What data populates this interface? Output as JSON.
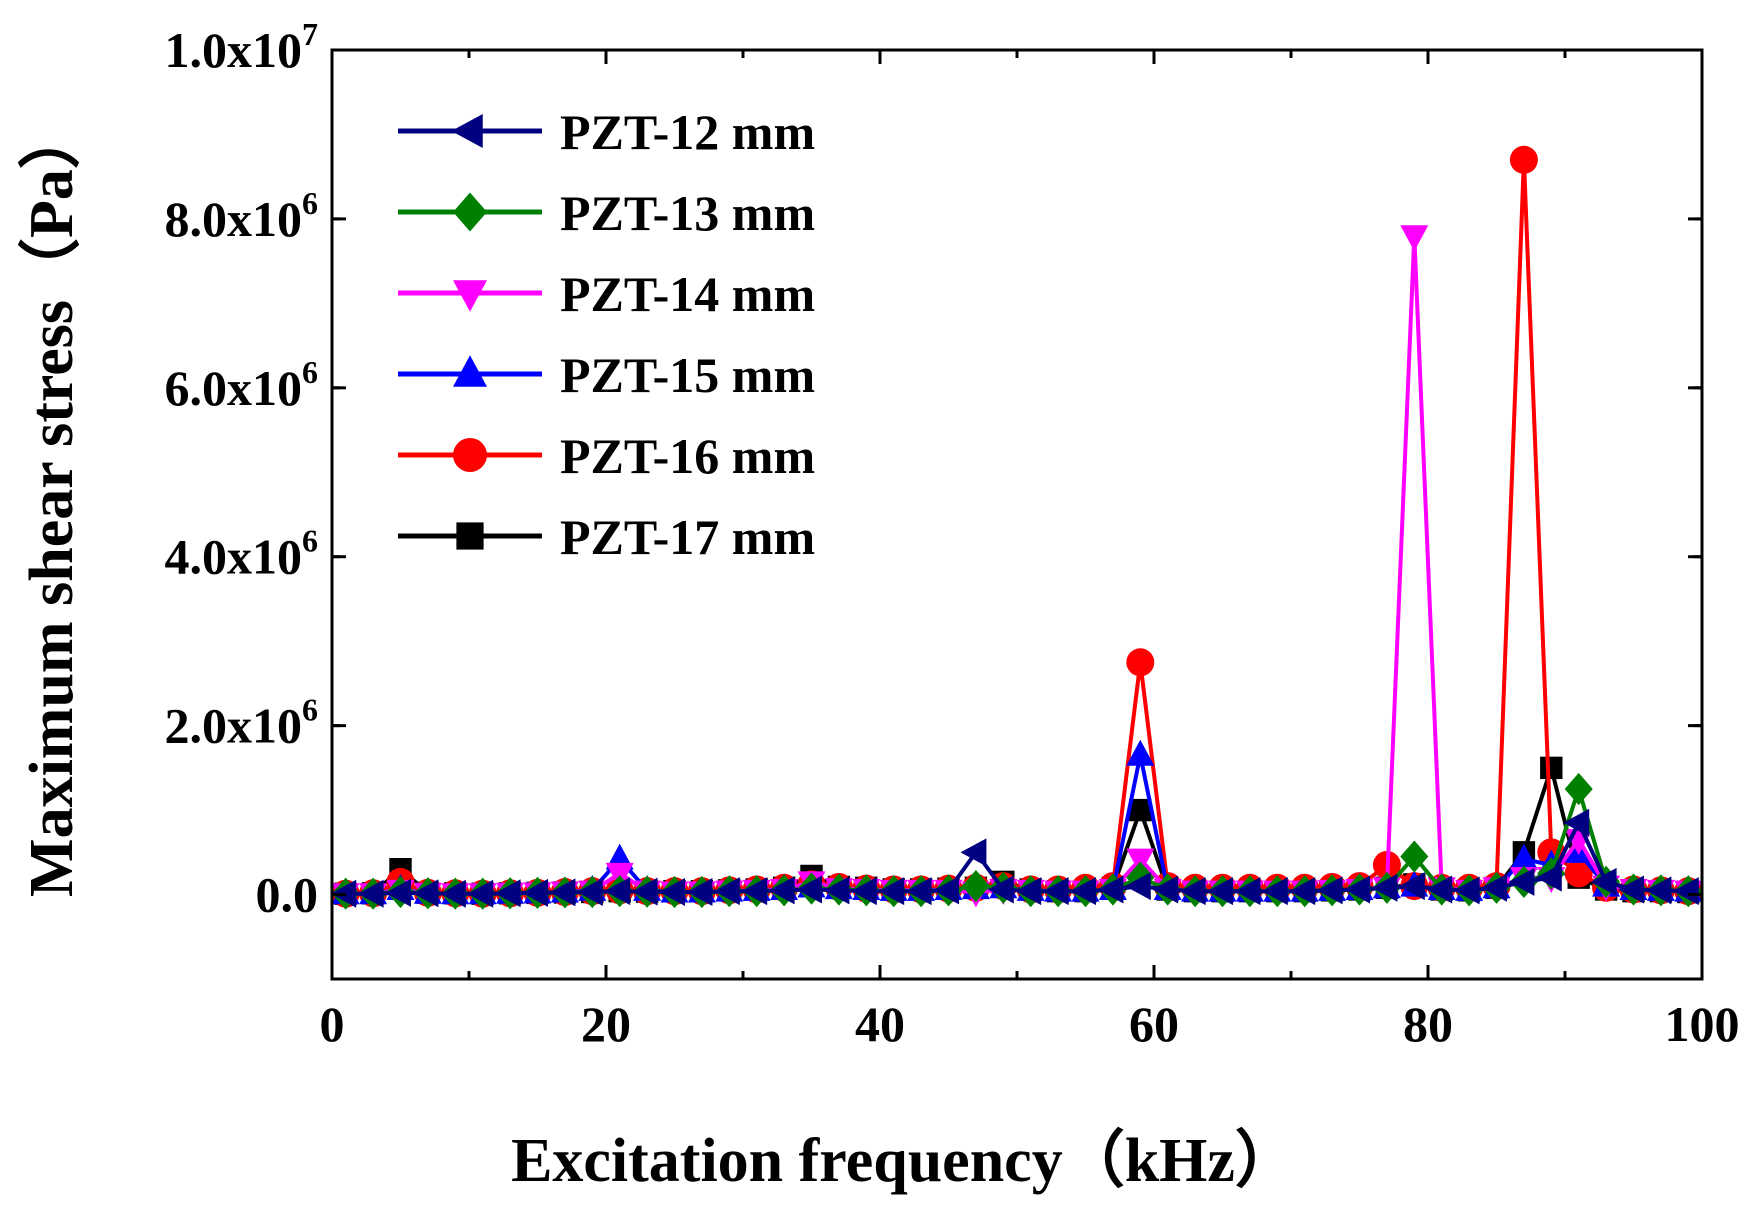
{
  "chart_data": {
    "type": "line",
    "title": "",
    "xlabel": "Excitation frequency（kHz）",
    "ylabel": "Maximum shear stress（Pa）",
    "xlim": [
      0,
      100
    ],
    "ylim": [
      -1000000,
      10000000
    ],
    "x_ticks": [
      0,
      20,
      40,
      60,
      80,
      100
    ],
    "x_tick_labels": [
      "0",
      "20",
      "40",
      "60",
      "80",
      "100"
    ],
    "y_ticks": [
      0,
      2000000,
      4000000,
      6000000,
      8000000,
      10000000
    ],
    "y_tick_labels": [
      {
        "base": "0.0",
        "exp": ""
      },
      {
        "base": "2.0x10",
        "exp": "6"
      },
      {
        "base": "4.0x10",
        "exp": "6"
      },
      {
        "base": "6.0x10",
        "exp": "6"
      },
      {
        "base": "8.0x10",
        "exp": "6"
      },
      {
        "base": "1.0x10",
        "exp": "7"
      }
    ],
    "legend_position": "top-left",
    "series": [
      {
        "name": "PZT-17 mm",
        "color": "#000000",
        "marker": "square",
        "x": [
          1,
          3,
          5,
          7,
          9,
          11,
          13,
          15,
          17,
          19,
          21,
          23,
          25,
          27,
          29,
          31,
          33,
          35,
          37,
          39,
          41,
          43,
          45,
          47,
          49,
          51,
          53,
          55,
          57,
          59,
          61,
          63,
          65,
          67,
          69,
          71,
          73,
          75,
          77,
          79,
          81,
          83,
          85,
          87,
          89,
          91,
          93,
          95,
          97,
          99
        ],
        "values": [
          10000,
          15000,
          300000,
          20000,
          15000,
          10000,
          15000,
          20000,
          25000,
          30000,
          40000,
          35000,
          40000,
          40000,
          50000,
          60000,
          80000,
          220000,
          90000,
          80000,
          60000,
          60000,
          70000,
          80000,
          150000,
          60000,
          40000,
          40000,
          80000,
          1000000,
          60000,
          40000,
          40000,
          40000,
          40000,
          40000,
          50000,
          60000,
          80000,
          120000,
          60000,
          50000,
          80000,
          500000,
          1500000,
          200000,
          60000,
          40000,
          40000,
          30000
        ]
      },
      {
        "name": "PZT-16 mm",
        "color": "#ff0000",
        "marker": "circle",
        "x": [
          1,
          3,
          5,
          7,
          9,
          11,
          13,
          15,
          17,
          19,
          21,
          23,
          25,
          27,
          29,
          31,
          33,
          35,
          37,
          39,
          41,
          43,
          45,
          47,
          49,
          51,
          53,
          55,
          57,
          59,
          61,
          63,
          65,
          67,
          69,
          71,
          73,
          75,
          77,
          79,
          81,
          83,
          85,
          87,
          89,
          91,
          93,
          95,
          97,
          99
        ],
        "values": [
          10000,
          15000,
          150000,
          20000,
          15000,
          10000,
          15000,
          20000,
          30000,
          40000,
          50000,
          40000,
          40000,
          40000,
          50000,
          60000,
          80000,
          120000,
          90000,
          70000,
          60000,
          60000,
          70000,
          80000,
          100000,
          60000,
          60000,
          80000,
          100000,
          2750000,
          100000,
          80000,
          80000,
          80000,
          80000,
          80000,
          90000,
          100000,
          350000,
          100000,
          80000,
          80000,
          100000,
          8700000,
          500000,
          250000,
          80000,
          60000,
          50000,
          40000
        ]
      },
      {
        "name": "PZT-15 mm",
        "color": "#0000ff",
        "marker": "triangle-up",
        "x": [
          1,
          3,
          5,
          7,
          9,
          11,
          13,
          15,
          17,
          19,
          21,
          23,
          25,
          27,
          29,
          31,
          33,
          35,
          37,
          39,
          41,
          43,
          45,
          47,
          49,
          51,
          53,
          55,
          57,
          59,
          61,
          63,
          65,
          67,
          69,
          71,
          73,
          75,
          77,
          79,
          81,
          83,
          85,
          87,
          89,
          91,
          93,
          95,
          97,
          99
        ],
        "values": [
          10000,
          10000,
          60000,
          15000,
          10000,
          10000,
          15000,
          20000,
          30000,
          50000,
          420000,
          50000,
          30000,
          30000,
          40000,
          50000,
          60000,
          90000,
          70000,
          60000,
          50000,
          50000,
          60000,
          70000,
          80000,
          50000,
          40000,
          40000,
          60000,
          1650000,
          60000,
          40000,
          40000,
          40000,
          40000,
          40000,
          50000,
          60000,
          80000,
          100000,
          60000,
          50000,
          80000,
          420000,
          350000,
          500000,
          100000,
          60000,
          50000,
          40000
        ]
      },
      {
        "name": "PZT-14 mm",
        "color": "#ff00ff",
        "marker": "triangle-down",
        "x": [
          1,
          3,
          5,
          7,
          9,
          11,
          13,
          15,
          17,
          19,
          21,
          23,
          25,
          27,
          29,
          31,
          33,
          35,
          37,
          39,
          41,
          43,
          45,
          47,
          49,
          51,
          53,
          55,
          57,
          59,
          61,
          63,
          65,
          67,
          69,
          71,
          73,
          75,
          77,
          79,
          81,
          83,
          85,
          87,
          89,
          91,
          93,
          95,
          97,
          99
        ],
        "values": [
          10000,
          10000,
          50000,
          15000,
          10000,
          10000,
          15000,
          20000,
          30000,
          40000,
          250000,
          40000,
          30000,
          30000,
          40000,
          50000,
          60000,
          150000,
          70000,
          60000,
          50000,
          50000,
          50000,
          30000,
          60000,
          50000,
          40000,
          40000,
          60000,
          420000,
          60000,
          40000,
          40000,
          40000,
          40000,
          40000,
          50000,
          60000,
          80000,
          7800000,
          80000,
          50000,
          80000,
          200000,
          200000,
          650000,
          100000,
          60000,
          50000,
          40000
        ]
      },
      {
        "name": "PZT-13 mm",
        "color": "#008000",
        "marker": "diamond",
        "x": [
          1,
          3,
          5,
          7,
          9,
          11,
          13,
          15,
          17,
          19,
          21,
          23,
          25,
          27,
          29,
          31,
          33,
          35,
          37,
          39,
          41,
          43,
          45,
          47,
          49,
          51,
          53,
          55,
          57,
          59,
          61,
          63,
          65,
          67,
          69,
          71,
          73,
          75,
          77,
          79,
          81,
          83,
          85,
          87,
          89,
          91,
          93,
          95,
          97,
          99
        ],
        "values": [
          10000,
          10000,
          30000,
          15000,
          10000,
          10000,
          15000,
          20000,
          25000,
          30000,
          40000,
          35000,
          30000,
          30000,
          40000,
          40000,
          50000,
          70000,
          60000,
          50000,
          40000,
          40000,
          50000,
          100000,
          80000,
          40000,
          40000,
          40000,
          60000,
          200000,
          60000,
          40000,
          40000,
          40000,
          40000,
          40000,
          50000,
          60000,
          80000,
          450000,
          60000,
          50000,
          80000,
          150000,
          250000,
          1250000,
          150000,
          60000,
          50000,
          40000
        ]
      },
      {
        "name": "PZT-12 mm",
        "color": "#000080",
        "marker": "triangle-left",
        "x": [
          1,
          3,
          5,
          7,
          9,
          11,
          13,
          15,
          17,
          19,
          21,
          23,
          25,
          27,
          29,
          31,
          33,
          35,
          37,
          39,
          41,
          43,
          45,
          47,
          49,
          51,
          53,
          55,
          57,
          59,
          61,
          63,
          65,
          67,
          69,
          71,
          73,
          75,
          77,
          79,
          81,
          83,
          85,
          87,
          89,
          91,
          93,
          95,
          97,
          99
        ],
        "values": [
          10000,
          10000,
          20000,
          15000,
          10000,
          10000,
          15000,
          20000,
          25000,
          30000,
          40000,
          35000,
          30000,
          30000,
          40000,
          40000,
          50000,
          60000,
          50000,
          40000,
          40000,
          40000,
          50000,
          500000,
          60000,
          40000,
          40000,
          40000,
          60000,
          100000,
          60000,
          40000,
          40000,
          40000,
          40000,
          40000,
          50000,
          60000,
          80000,
          100000,
          60000,
          50000,
          80000,
          150000,
          200000,
          850000,
          150000,
          60000,
          50000,
          40000
        ]
      }
    ],
    "legend_order": [
      "PZT-12 mm",
      "PZT-13 mm",
      "PZT-14 mm",
      "PZT-15 mm",
      "PZT-16 mm",
      "PZT-17 mm"
    ]
  }
}
